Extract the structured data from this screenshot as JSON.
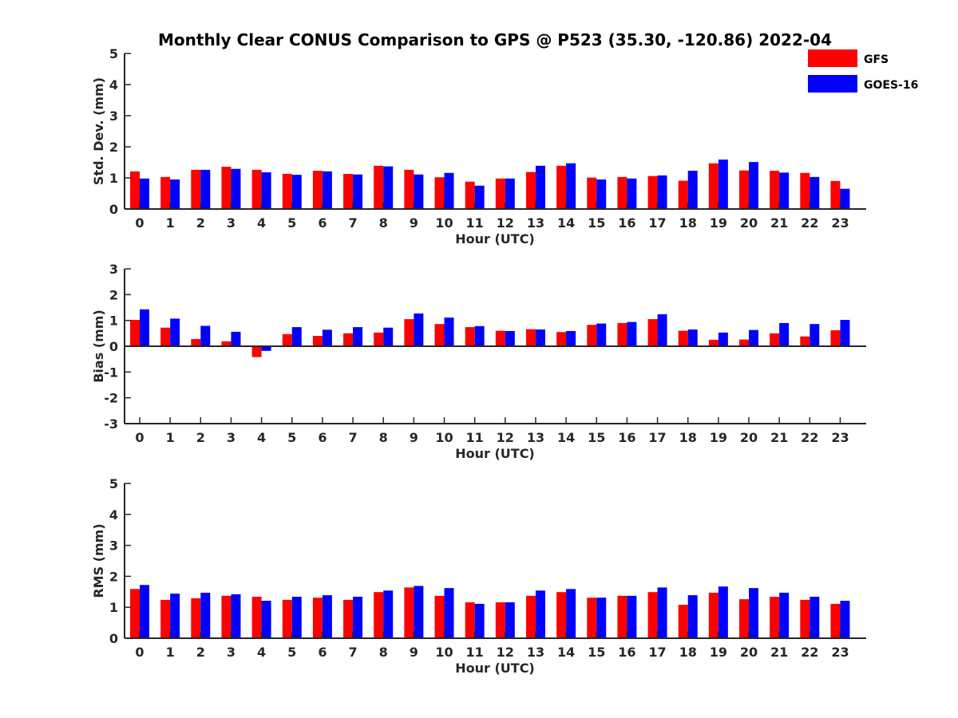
{
  "chart_data": [
    {
      "type": "bar",
      "title": "Monthly Clear CONUS Comparison to GPS @ P523 (35.30, -120.86) 2022-04",
      "xlabel": "Hour (UTC)",
      "ylabel": "Std. Dev. (mm)",
      "ylim": [
        0,
        5
      ],
      "yticks": [
        "0",
        "1",
        "2",
        "3",
        "4",
        "5"
      ],
      "categories": [
        "0",
        "1",
        "2",
        "3",
        "4",
        "5",
        "6",
        "7",
        "8",
        "9",
        "10",
        "11",
        "12",
        "13",
        "14",
        "15",
        "16",
        "17",
        "18",
        "19",
        "20",
        "21",
        "22",
        "23"
      ],
      "legend": "top-right",
      "series": [
        {
          "name": "GFS",
          "color": "#ff0000",
          "values": [
            1.21,
            1.03,
            1.26,
            1.36,
            1.26,
            1.13,
            1.23,
            1.13,
            1.39,
            1.26,
            1.02,
            0.88,
            0.98,
            1.19,
            1.39,
            1.01,
            1.03,
            1.06,
            0.91,
            1.47,
            1.24,
            1.23,
            1.16,
            0.9
          ]
        },
        {
          "name": "GOES-16",
          "color": "#0000ff",
          "values": [
            0.98,
            0.95,
            1.26,
            1.29,
            1.18,
            1.1,
            1.21,
            1.11,
            1.37,
            1.11,
            1.16,
            0.75,
            0.98,
            1.39,
            1.47,
            0.95,
            0.98,
            1.08,
            1.23,
            1.59,
            1.51,
            1.17,
            1.03,
            0.65
          ]
        }
      ]
    },
    {
      "type": "bar",
      "xlabel": "Hour (UTC)",
      "ylabel": "Bias (mm)",
      "ylim": [
        -3,
        3
      ],
      "yticks": [
        "-3",
        "-2",
        "-1",
        "0",
        "1",
        "2",
        "3"
      ],
      "categories": [
        "0",
        "1",
        "2",
        "3",
        "4",
        "5",
        "6",
        "7",
        "8",
        "9",
        "10",
        "11",
        "12",
        "13",
        "14",
        "15",
        "16",
        "17",
        "18",
        "19",
        "20",
        "21",
        "22",
        "23"
      ],
      "series": [
        {
          "name": "GFS",
          "color": "#ff0000",
          "values": [
            1.02,
            0.72,
            0.28,
            0.19,
            -0.42,
            0.47,
            0.4,
            0.5,
            0.53,
            1.05,
            0.86,
            0.74,
            0.6,
            0.66,
            0.55,
            0.83,
            0.9,
            1.05,
            0.6,
            0.25,
            0.26,
            0.5,
            0.38,
            0.62
          ]
        },
        {
          "name": "GOES-16",
          "color": "#0000ff",
          "values": [
            1.43,
            1.07,
            0.79,
            0.56,
            -0.18,
            0.74,
            0.64,
            0.74,
            0.72,
            1.27,
            1.11,
            0.78,
            0.59,
            0.65,
            0.59,
            0.88,
            0.94,
            1.24,
            0.65,
            0.53,
            0.63,
            0.9,
            0.86,
            1.02
          ]
        }
      ]
    },
    {
      "type": "bar",
      "xlabel": "Hour (UTC)",
      "ylabel": "RMS (mm)",
      "ylim": [
        0,
        5
      ],
      "yticks": [
        "0",
        "1",
        "2",
        "3",
        "4",
        "5"
      ],
      "categories": [
        "0",
        "1",
        "2",
        "3",
        "4",
        "5",
        "6",
        "7",
        "8",
        "9",
        "10",
        "11",
        "12",
        "13",
        "14",
        "15",
        "16",
        "17",
        "18",
        "19",
        "20",
        "21",
        "22",
        "23"
      ],
      "series": [
        {
          "name": "GFS",
          "color": "#ff0000",
          "values": [
            1.59,
            1.24,
            1.29,
            1.37,
            1.34,
            1.24,
            1.31,
            1.24,
            1.49,
            1.64,
            1.37,
            1.16,
            1.16,
            1.37,
            1.49,
            1.31,
            1.37,
            1.49,
            1.08,
            1.47,
            1.26,
            1.34,
            1.24,
            1.11
          ]
        },
        {
          "name": "GOES-16",
          "color": "#0000ff",
          "values": [
            1.72,
            1.44,
            1.47,
            1.42,
            1.21,
            1.34,
            1.39,
            1.34,
            1.54,
            1.69,
            1.62,
            1.11,
            1.16,
            1.54,
            1.59,
            1.31,
            1.37,
            1.64,
            1.39,
            1.67,
            1.62,
            1.47,
            1.34,
            1.21
          ]
        }
      ]
    }
  ]
}
